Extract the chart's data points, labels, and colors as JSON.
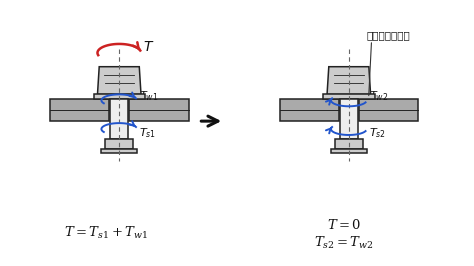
{
  "bg_color": "#ffffff",
  "nut_color": "#cccccc",
  "nut_edge": "#222222",
  "plate_color": "#aaaaaa",
  "plate_edge": "#222222",
  "shaft_color": "#eeeeee",
  "shaft_edge": "#222222",
  "red_color": "#cc2222",
  "blue_color": "#2255cc",
  "text_color": "#111111",
  "eq1": "$T = T_{s1} + T_{w1}$",
  "eq2_line1": "$T = 0$",
  "eq2_line2": "$T_{s2} = T_{w2}$",
  "label_T": "$T$",
  "label_Tw1": "$T_{w1}$",
  "label_Ts1": "$T_{s1}$",
  "label_Tw2": "$T_{w2}$",
  "label_Ts2": "$T_{s2}$",
  "annotation": "向きが反転する"
}
